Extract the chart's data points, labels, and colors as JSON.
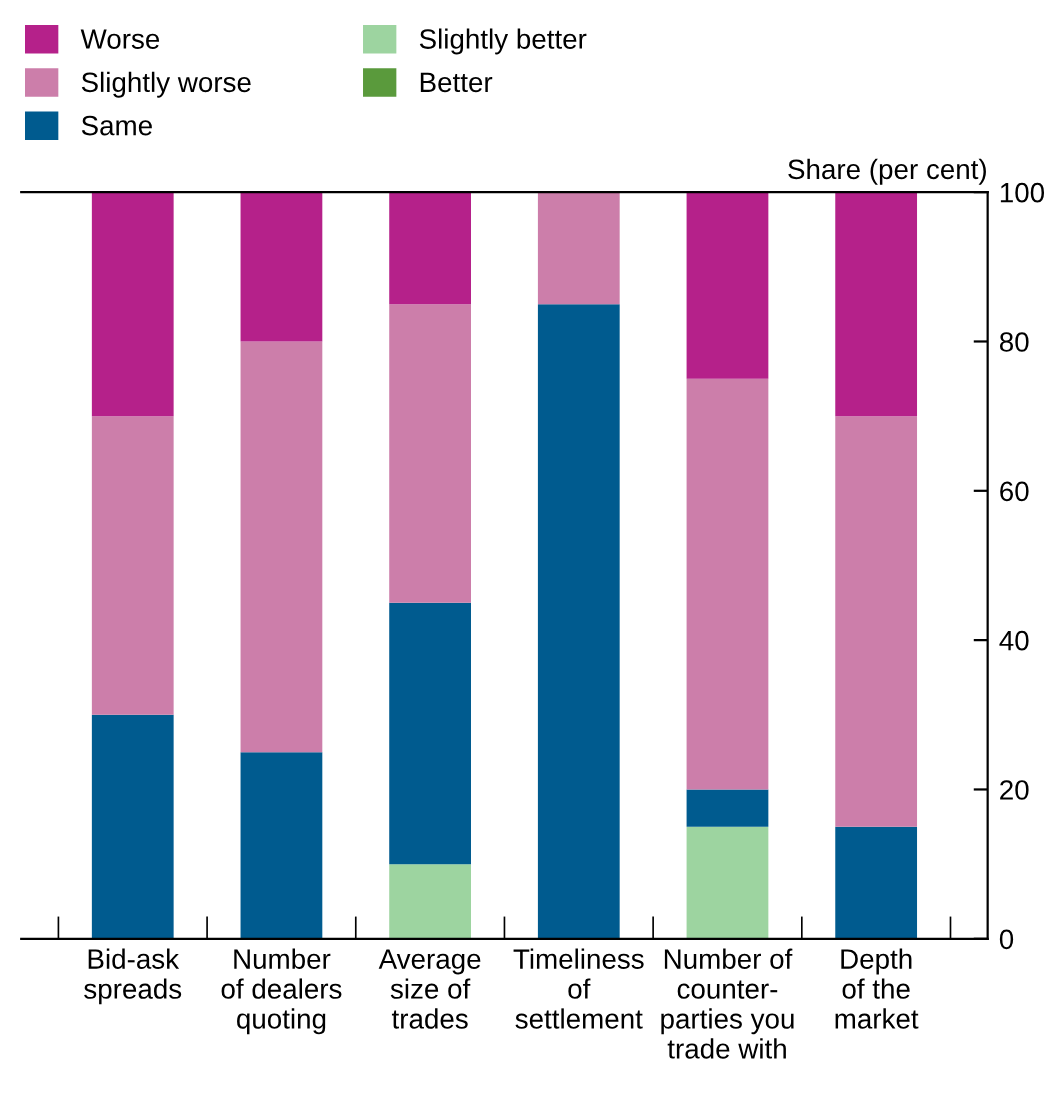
{
  "chart_data": {
    "type": "bar",
    "stacked": true,
    "ylabel": "Share (per cent)",
    "categories": [
      "Bid-ask\nspreads",
      "Number\nof dealers\nquoting",
      "Average\nsize of\ntrades",
      "Timeliness\nof\nsettlement",
      "Number of\ncounter-\nparties you\ntrade with",
      "Depth\nof the\nmarket"
    ],
    "series": [
      {
        "name": "Better",
        "color": "#5a9a3c",
        "values": [
          0,
          0,
          0,
          0,
          0,
          0
        ]
      },
      {
        "name": "Slightly better",
        "color": "#9dd4a0",
        "values": [
          0,
          0,
          10,
          0,
          15,
          0
        ]
      },
      {
        "name": "Same",
        "color": "#005b8f",
        "values": [
          30,
          25,
          35,
          85,
          5,
          15
        ]
      },
      {
        "name": "Slightly worse",
        "color": "#cc7eaa",
        "values": [
          40,
          55,
          40,
          15,
          55,
          55
        ]
      },
      {
        "name": "Worse",
        "color": "#b5218a",
        "values": [
          30,
          20,
          15,
          0,
          25,
          30
        ]
      }
    ],
    "ylim": [
      0,
      100
    ],
    "yticks": [
      0,
      20,
      40,
      60,
      80,
      100
    ],
    "grid": false,
    "legend": "top left"
  }
}
